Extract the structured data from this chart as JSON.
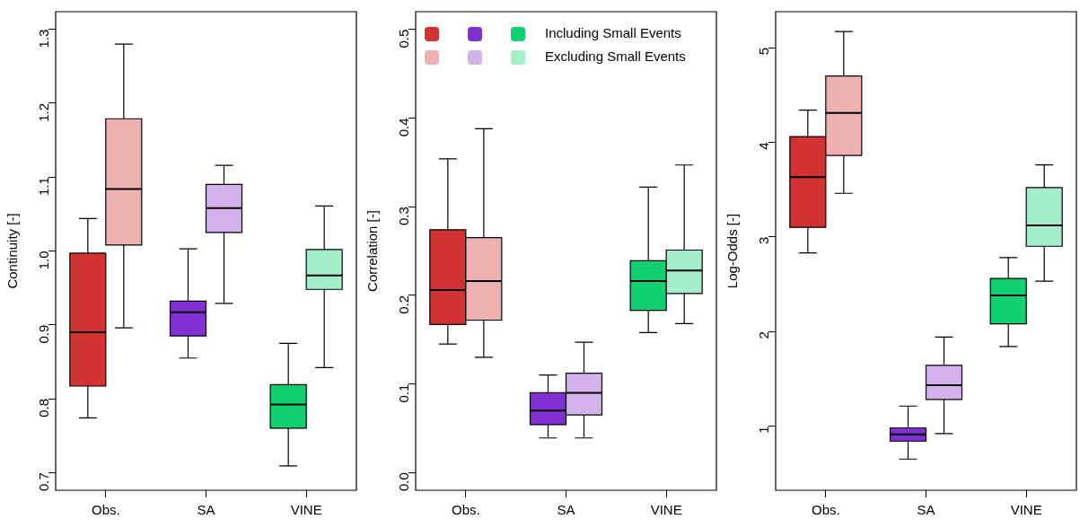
{
  "chart_data": [
    {
      "type": "box",
      "ylabel": "Continuity [-]",
      "categories": [
        "Obs.",
        "SA",
        "VINE"
      ],
      "ylim": [
        0.676,
        1.324
      ],
      "yticks": [
        0.7,
        0.8,
        0.9,
        {
          "value": 1,
          "label": "1.0"
        },
        1.1,
        1.2,
        1.3
      ],
      "grid": false,
      "series": [
        {
          "colors": [
            "#d13232",
            "#8030d0",
            "#10d070"
          ],
          "boxes": [
            {
              "low": 0.774,
              "q1": 0.817,
              "median": 0.89,
              "q3": 0.997,
              "high": 1.044
            },
            {
              "low": 0.855,
              "q1": 0.885,
              "median": 0.917,
              "q3": 0.932,
              "high": 1.003
            },
            {
              "low": 0.709,
              "q1": 0.76,
              "median": 0.792,
              "q3": 0.819,
              "high": 0.875
            }
          ]
        },
        {
          "colors": [
            "#eeb1b1",
            "#d3b2ec",
            "#a4eecb"
          ],
          "boxes": [
            {
              "low": 0.896,
              "q1": 1.008,
              "median": 1.084,
              "q3": 1.179,
              "high": 1.28
            },
            {
              "low": 0.929,
              "q1": 1.025,
              "median": 1.058,
              "q3": 1.09,
              "high": 1.116
            },
            {
              "low": 0.842,
              "q1": 0.948,
              "median": 0.967,
              "q3": 1.002,
              "high": 1.061
            }
          ]
        }
      ]
    },
    {
      "type": "box",
      "ylabel": "Correlation [-]",
      "categories": [
        "Obs.",
        "SA",
        "VINE"
      ],
      "ylim": [
        -0.02,
        0.52
      ],
      "yticks": [
        {
          "value": 0,
          "label": "0.0"
        },
        0.1,
        0.2,
        0.3,
        0.4,
        0.5
      ],
      "grid": false,
      "legend": "top left",
      "series": [
        {
          "name": "Including Small Events",
          "colors": [
            "#d13232",
            "#8030d0",
            "#10d070"
          ],
          "boxes": [
            {
              "low": 0.145,
              "q1": 0.167,
              "median": 0.206,
              "q3": 0.274,
              "high": 0.354
            },
            {
              "low": 0.039,
              "q1": 0.054,
              "median": 0.07,
              "q3": 0.09,
              "high": 0.11
            },
            {
              "low": 0.158,
              "q1": 0.183,
              "median": 0.216,
              "q3": 0.239,
              "high": 0.322
            }
          ]
        },
        {
          "name": "Excluding Small Events",
          "colors": [
            "#eeb1b1",
            "#d3b2ec",
            "#a4eecb"
          ],
          "boxes": [
            {
              "low": 0.13,
              "q1": 0.172,
              "median": 0.216,
              "q3": 0.265,
              "high": 0.388
            },
            {
              "low": 0.039,
              "q1": 0.065,
              "median": 0.09,
              "q3": 0.112,
              "high": 0.147
            },
            {
              "low": 0.168,
              "q1": 0.202,
              "median": 0.228,
              "q3": 0.251,
              "high": 0.347
            }
          ]
        }
      ]
    },
    {
      "type": "box",
      "ylabel": "Log-Odds [-]",
      "categories": [
        "Obs.",
        "SA",
        "VINE"
      ],
      "ylim": [
        0.32,
        5.38
      ],
      "yticks": [
        1,
        2,
        3,
        4,
        5
      ],
      "grid": false,
      "series": [
        {
          "colors": [
            "#d13232",
            "#8030d0",
            "#10d070"
          ],
          "boxes": [
            {
              "low": 2.83,
              "q1": 3.1,
              "median": 3.63,
              "q3": 4.06,
              "high": 4.34
            },
            {
              "low": 0.65,
              "q1": 0.84,
              "median": 0.91,
              "q3": 0.98,
              "high": 1.21
            },
            {
              "low": 1.84,
              "q1": 2.08,
              "median": 2.38,
              "q3": 2.56,
              "high": 2.78
            }
          ]
        },
        {
          "colors": [
            "#eeb1b1",
            "#d3b2ec",
            "#a4eecb"
          ],
          "boxes": [
            {
              "low": 3.46,
              "q1": 3.86,
              "median": 4.31,
              "q3": 4.7,
              "high": 5.17
            },
            {
              "low": 0.92,
              "q1": 1.28,
              "median": 1.43,
              "q3": 1.64,
              "high": 1.94
            },
            {
              "low": 2.53,
              "q1": 2.9,
              "median": 3.12,
              "q3": 3.52,
              "high": 3.76
            }
          ]
        }
      ]
    }
  ]
}
